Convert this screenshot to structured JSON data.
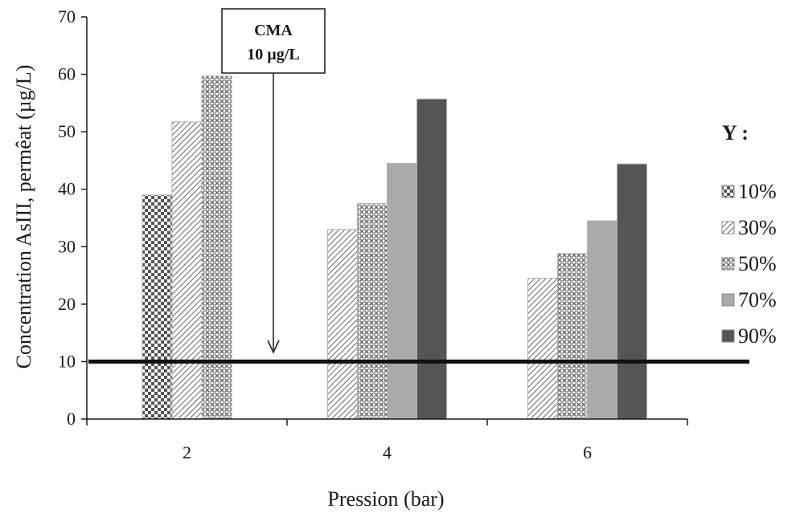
{
  "chart_data": {
    "type": "bar",
    "categories": [
      "2",
      "4",
      "6"
    ],
    "xlabel": "Pression (bar)",
    "ylabel": "Concentration AsIII, permêat (µg/L)",
    "ylim": [
      0,
      70
    ],
    "yticks": [
      0,
      10,
      20,
      30,
      40,
      50,
      60,
      70
    ],
    "grid": false,
    "legend": {
      "title": "Y :",
      "placement": "right"
    },
    "series": [
      {
        "name": "10%",
        "color": "#555555",
        "pattern": "checker",
        "values": [
          39,
          null,
          null
        ]
      },
      {
        "name": "30%",
        "color": "#666666",
        "pattern": "diagonal",
        "values": [
          51.7,
          33,
          24.5
        ]
      },
      {
        "name": "50%",
        "color": "#666666",
        "pattern": "crosshatch",
        "values": [
          59.7,
          37.5,
          28.8
        ]
      },
      {
        "name": "70%",
        "color": "#aaaaaa",
        "pattern": "solid",
        "values": [
          null,
          44.5,
          34.5
        ]
      },
      {
        "name": "90%",
        "color": "#555555",
        "pattern": "solid",
        "values": [
          null,
          55.7,
          44.4
        ]
      }
    ],
    "reference_line": {
      "value": 10
    },
    "annotation": {
      "line1": "CMA",
      "line2": "10 µg/L"
    }
  }
}
